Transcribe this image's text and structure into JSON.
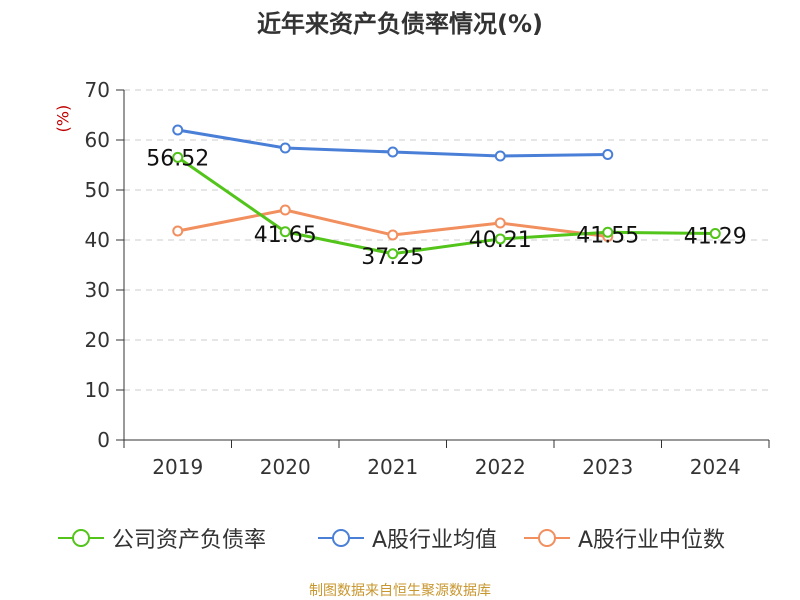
{
  "title": "近年来资产负债率情况(%)",
  "source": "制图数据来自恒生聚源数据库",
  "chart_data": {
    "type": "line",
    "title": "近年来资产负债率情况(%)",
    "xlabel": "",
    "ylabel": "(%)",
    "categories": [
      "2019",
      "2020",
      "2021",
      "2022",
      "2023",
      "2024"
    ],
    "ylim": [
      0,
      70
    ],
    "yticks": [
      0,
      10,
      20,
      30,
      40,
      50,
      60,
      70
    ],
    "grid": true,
    "legend_position": "bottom",
    "series": [
      {
        "name": "公司资产负债率",
        "color": "#52c41a",
        "values": [
          56.52,
          41.65,
          37.25,
          40.21,
          41.55,
          41.29
        ],
        "labels": [
          "56.52",
          "41.65",
          "37.25",
          "40.21",
          "41.55",
          "41.29"
        ]
      },
      {
        "name": "A股行业均值",
        "color": "#4a7fd8",
        "values": [
          62.0,
          58.4,
          57.6,
          56.8,
          57.1,
          null
        ]
      },
      {
        "name": "A股行业中位数",
        "color": "#f28f5f",
        "values": [
          41.8,
          46.0,
          41.0,
          43.4,
          40.7,
          null
        ]
      }
    ]
  }
}
